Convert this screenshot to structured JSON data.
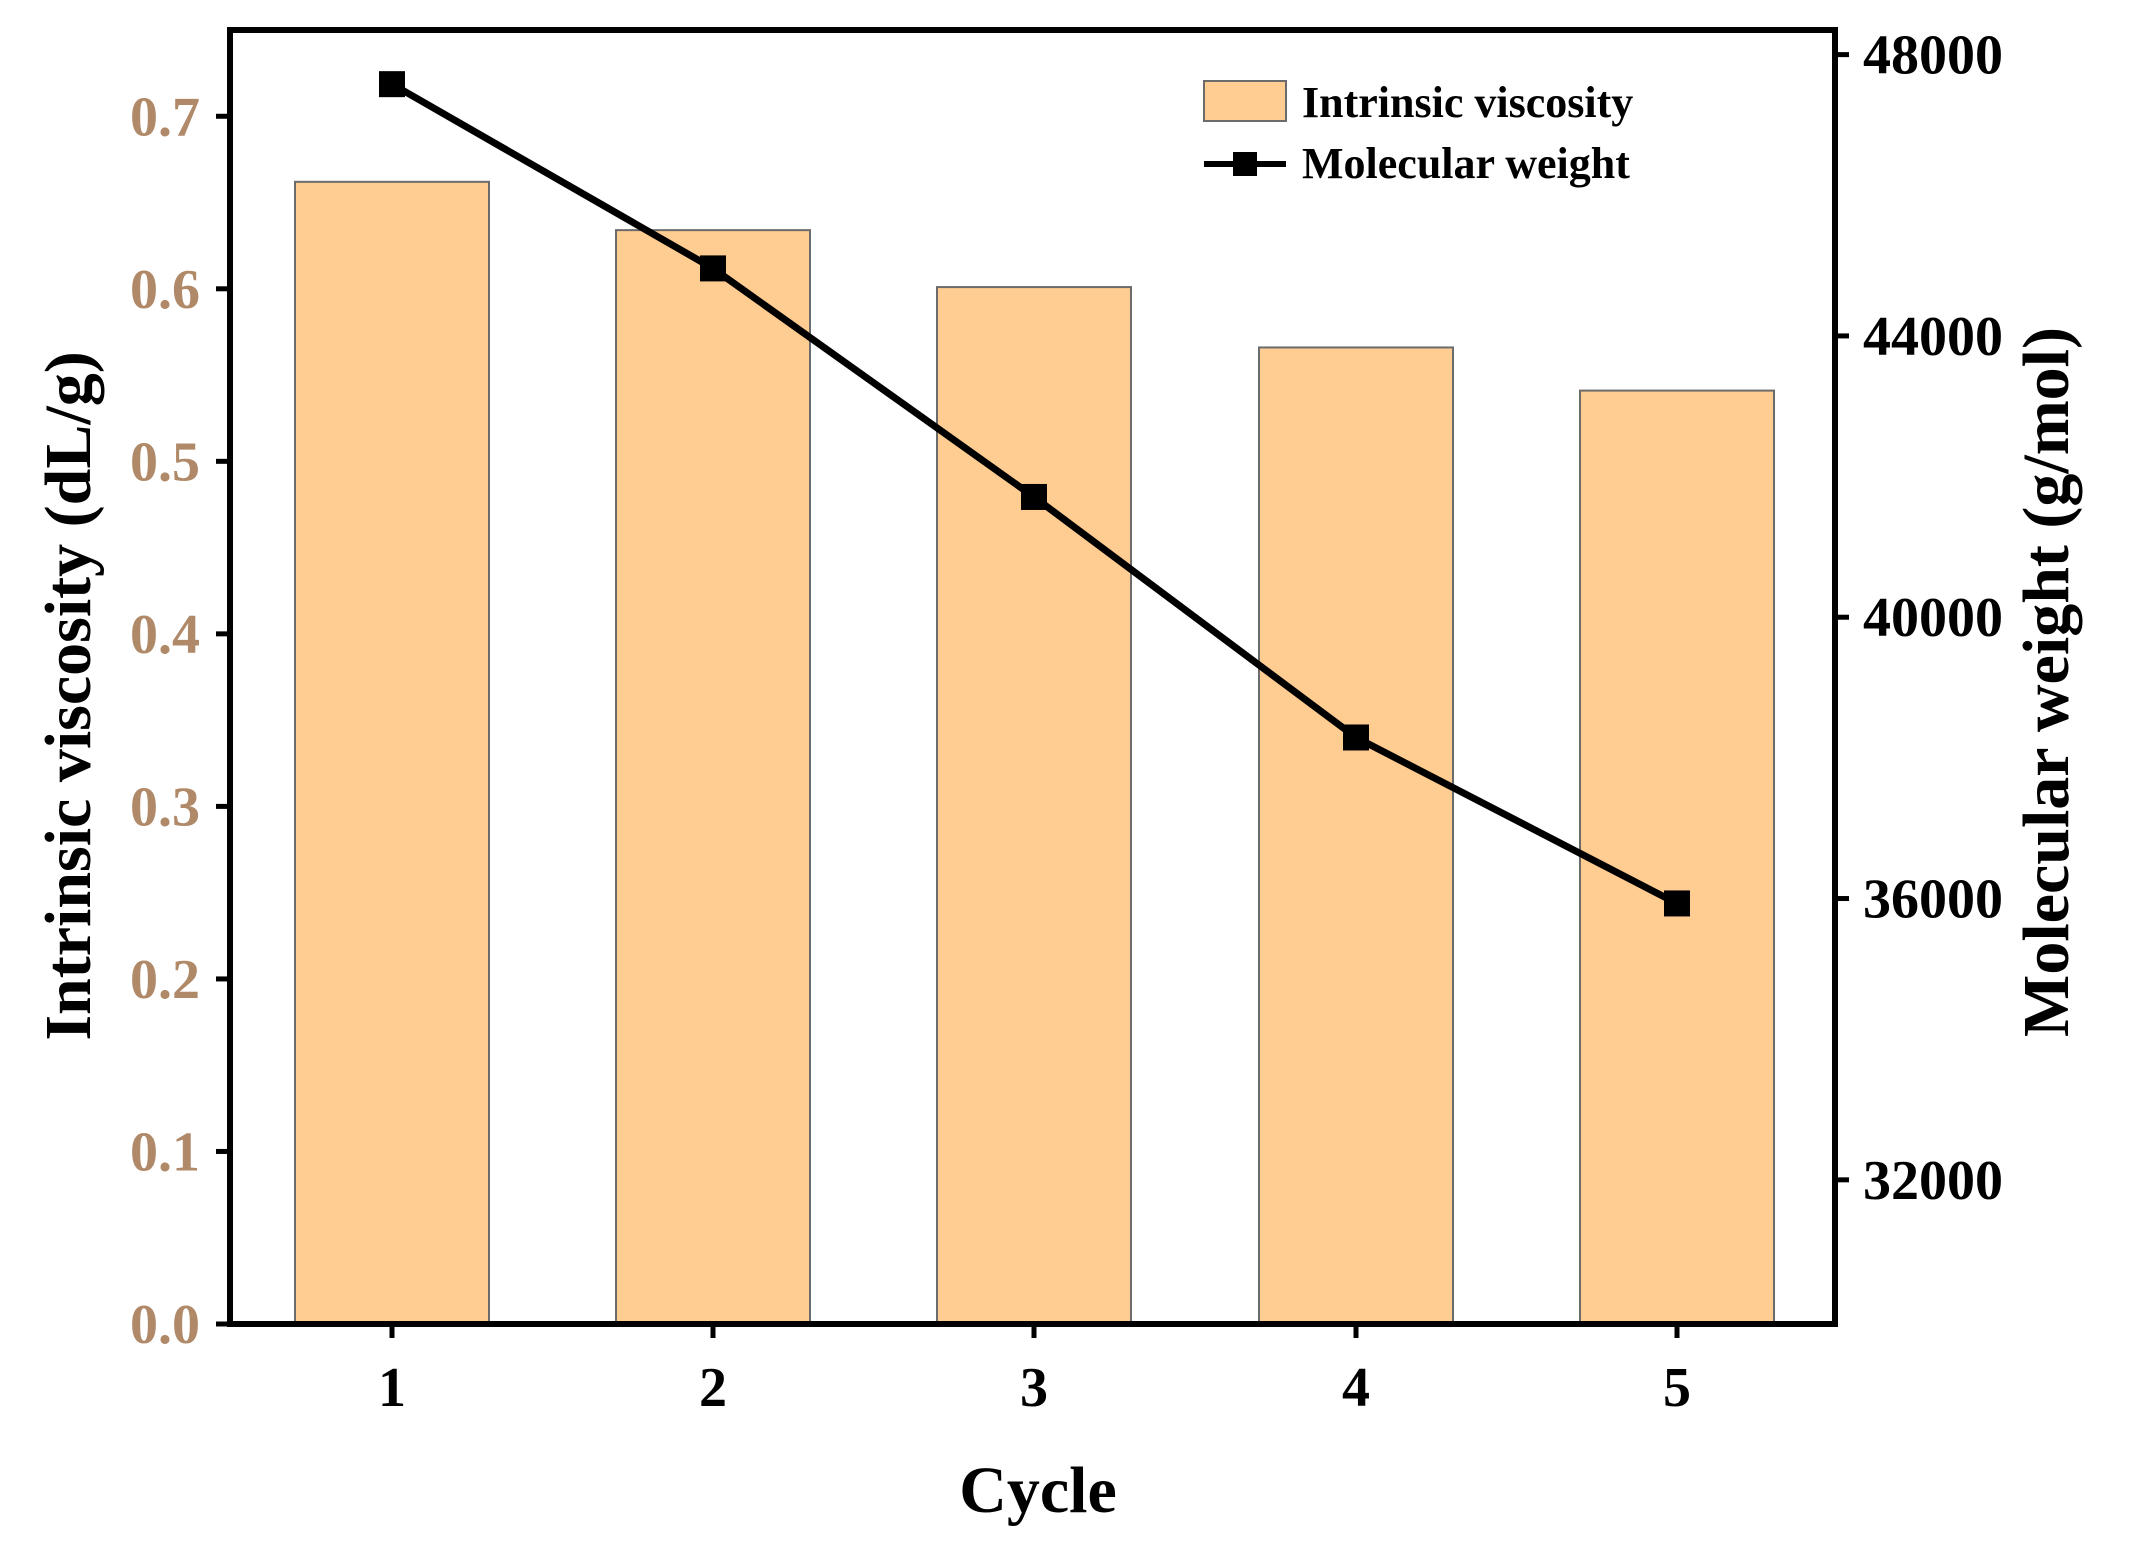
{
  "chart_data": {
    "type": "bar+line",
    "title": "",
    "categories": [
      "1",
      "2",
      "3",
      "4",
      "5"
    ],
    "xlabel": "Cycle",
    "ylabel_left": "Intrinsic viscosity (dL/g)",
    "ylabel_right": "Molecular weight (g/mol)",
    "ylim_left": [
      0,
      0.75
    ],
    "ylim_right": [
      29950,
      48350
    ],
    "yticks_left": [
      "0.0",
      "0.1",
      "0.2",
      "0.3",
      "0.4",
      "0.5",
      "0.6",
      "0.7"
    ],
    "yticks_left_values": [
      0,
      0.1,
      0.2,
      0.3,
      0.4,
      0.5,
      0.6,
      0.7
    ],
    "yticks_right": [
      "32000",
      "36000",
      "40000",
      "44000",
      "48000"
    ],
    "yticks_right_values": [
      32000,
      36000,
      40000,
      44000,
      48000
    ],
    "series": [
      {
        "name": "Intrinsic viscosity",
        "type": "bar",
        "axis": "left",
        "values": [
          0.662,
          0.634,
          0.601,
          0.566,
          0.541
        ],
        "color": "#ffcc91",
        "edge_color": "#6b6b6b"
      },
      {
        "name": "Molecular weight",
        "type": "line",
        "axis": "right",
        "marker": "square",
        "values": [
          47580,
          44960,
          41710,
          38290,
          35930
        ],
        "color": "#000000"
      }
    ],
    "legend_position": "top-right",
    "left_tick_color": "#b08968",
    "grid": false
  }
}
